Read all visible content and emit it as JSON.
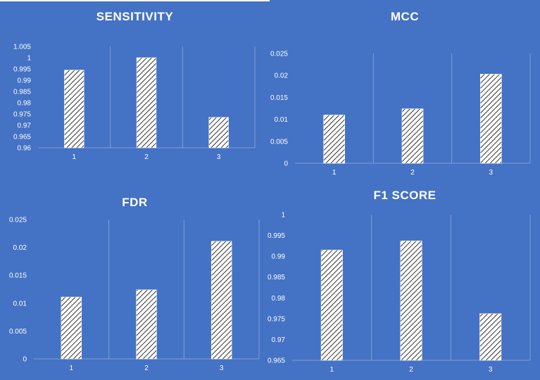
{
  "colors": {
    "background": "#4472C4",
    "bar_fill": "#FFFFFF",
    "bar_hatch": "#000000",
    "grid": "#7F9FD8",
    "text": "#FFFFFF"
  },
  "chart_data": [
    {
      "type": "bar",
      "title": "SENSITIVITY",
      "categories": [
        "1",
        "2",
        "3"
      ],
      "values": [
        0.9945,
        1.0,
        0.9735
      ],
      "ylim": [
        0.96,
        1.005
      ],
      "yticks": [
        "0.96",
        "0.965",
        "0.97",
        "0.975",
        "0.98",
        "0.985",
        "0.99",
        "0.995",
        "1",
        "1.005"
      ],
      "pattern": "diagonal-hatch",
      "grid": "vertical-category-separators"
    },
    {
      "type": "bar",
      "title": "MCC",
      "categories": [
        "1",
        "2",
        "3"
      ],
      "values": [
        0.011,
        0.0124,
        0.0203
      ],
      "ylim": [
        0,
        0.025
      ],
      "yticks": [
        "0",
        "0.005",
        "0.01",
        "0.015",
        "0.02",
        "0.025"
      ],
      "pattern": "diagonal-hatch",
      "grid": "vertical-category-separators"
    },
    {
      "type": "bar",
      "title": "FDR",
      "categories": [
        "1",
        "2",
        "3"
      ],
      "values": [
        0.0111,
        0.0124,
        0.0211
      ],
      "ylim": [
        0,
        0.025
      ],
      "yticks": [
        "0",
        "0.005",
        "0.01",
        "0.015",
        "0.02",
        "0.025"
      ],
      "pattern": "diagonal-hatch",
      "grid": "vertical-category-separators"
    },
    {
      "type": "bar",
      "title": "F1 SCORE",
      "categories": [
        "1",
        "2",
        "3"
      ],
      "values": [
        0.9915,
        0.9937,
        0.9762
      ],
      "ylim": [
        0.965,
        1
      ],
      "yticks": [
        "0.965",
        "0.97",
        "0.975",
        "0.98",
        "0.985",
        "0.99",
        "0.995",
        "1"
      ],
      "pattern": "diagonal-hatch",
      "grid": "vertical-category-separators"
    }
  ]
}
